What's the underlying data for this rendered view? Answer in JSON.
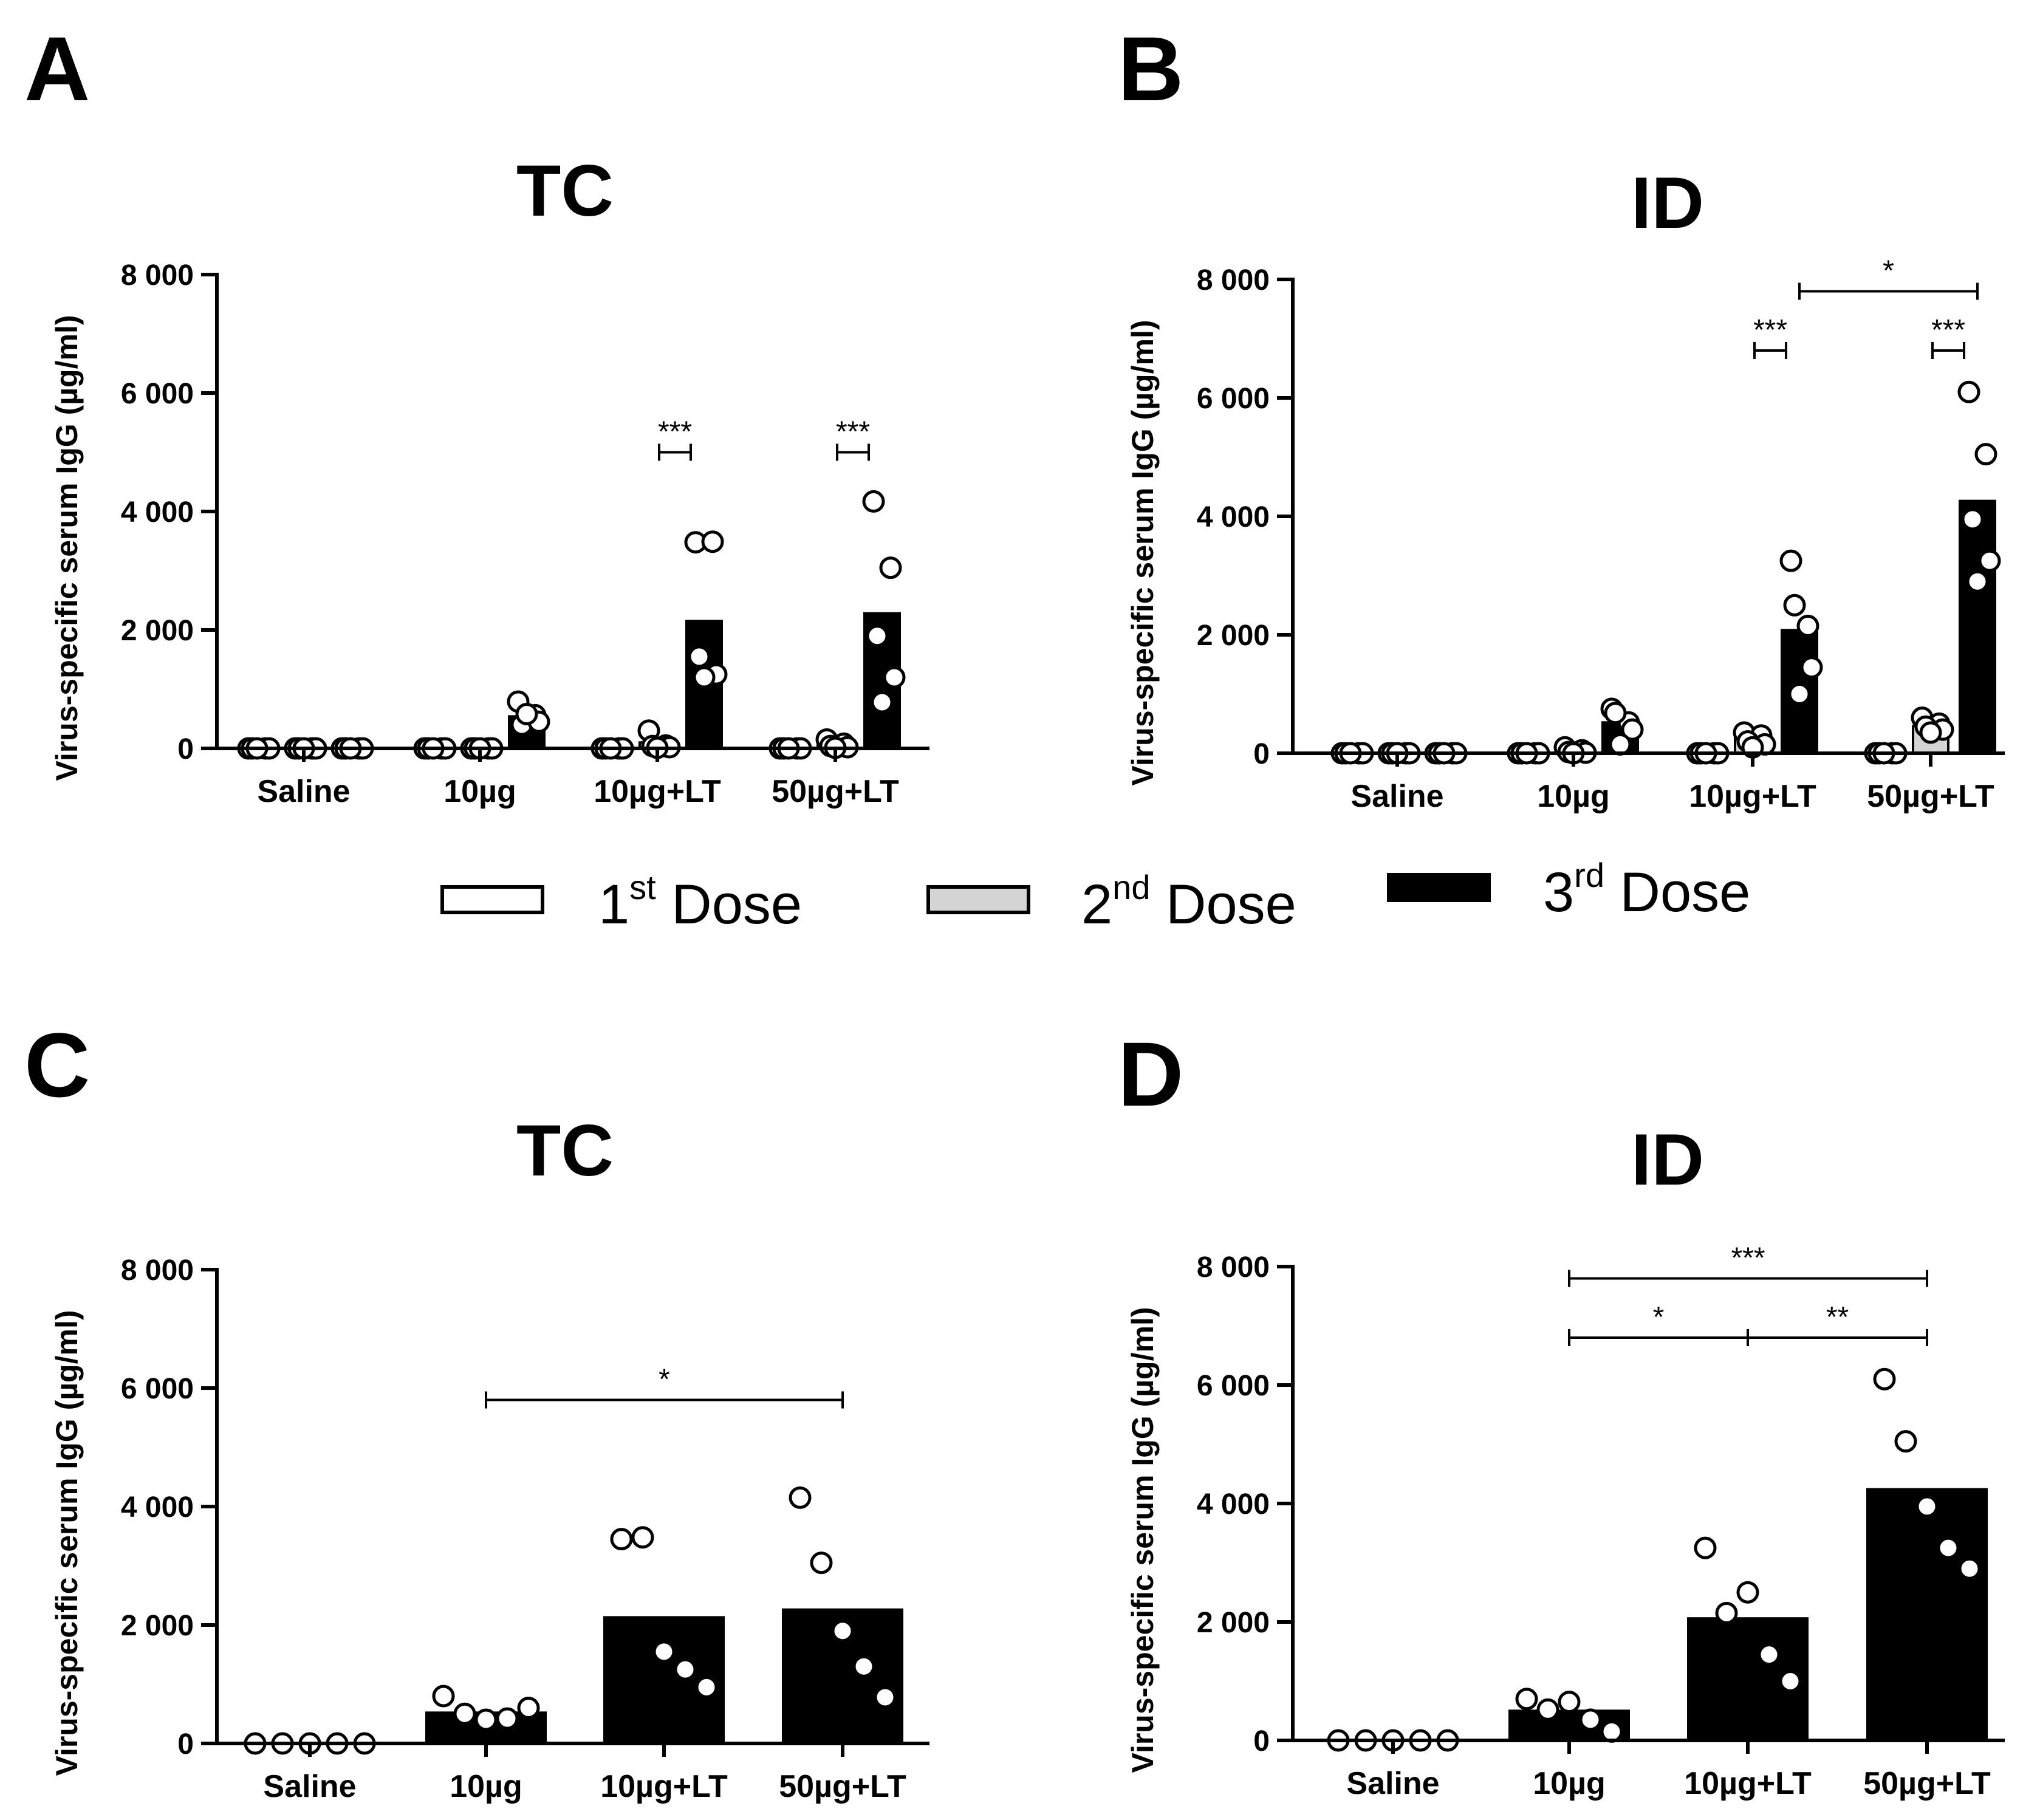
{
  "legend": [
    {
      "pre": "1",
      "sup": "st",
      "post": " Dose",
      "color": "#ffffff"
    },
    {
      "pre": "2",
      "sup": "nd",
      "post": " Dose",
      "color": "#d4d4d4"
    },
    {
      "pre": "3",
      "sup": "rd",
      "post": " Dose",
      "color": "#000000"
    }
  ],
  "chart_data": [
    {
      "panel": "A",
      "title": "TC",
      "type": "bar",
      "ylabel": "Virus-specific serum IgG (µg/ml)",
      "ylim": [
        0,
        8000
      ],
      "yticks": [
        0,
        2000,
        4000,
        6000,
        8000
      ],
      "ytick_labels": [
        "0",
        "2 000",
        "4 000",
        "6 000",
        "8 000"
      ],
      "categories": [
        "Saline",
        "10µg",
        "10µg+LT",
        "50µg+LT"
      ],
      "series": [
        {
          "name": "1st Dose",
          "values": [
            0,
            0,
            0,
            0
          ],
          "points": [
            [
              0,
              0,
              0,
              0,
              0
            ],
            [
              0,
              0,
              0,
              0,
              0
            ],
            [
              0,
              0,
              0,
              0,
              0
            ],
            [
              0,
              0,
              0,
              0,
              0
            ]
          ]
        },
        {
          "name": "2nd Dose",
          "values": [
            0,
            0,
            100,
            60
          ],
          "points": [
            [
              0,
              0,
              0,
              0,
              0
            ],
            [
              0,
              0,
              0,
              0,
              0
            ],
            [
              300,
              50,
              40,
              20,
              10
            ],
            [
              150,
              80,
              40,
              20,
              10
            ]
          ]
        },
        {
          "name": "3rd Dose",
          "values": [
            0,
            540,
            2150,
            2280
          ],
          "points": [
            [
              0,
              0,
              0,
              0,
              0
            ],
            [
              790,
              560,
              400,
              450,
              580
            ],
            [
              3480,
              3490,
              1550,
              1250,
              1200
            ],
            [
              4170,
              3050,
              1900,
              1200,
              780
            ]
          ]
        }
      ],
      "annotations": [
        {
          "cat_from": 2,
          "cat_to": 2,
          "series_from": 1,
          "series_to": 2,
          "label": "***",
          "y": 5000
        },
        {
          "cat_from": 3,
          "cat_to": 3,
          "series_from": 1,
          "series_to": 2,
          "label": "***",
          "y": 5000
        }
      ]
    },
    {
      "panel": "B",
      "title": "ID",
      "type": "bar",
      "ylabel": "Virus-specific serum IgG (µg/ml)",
      "ylim": [
        0,
        8000
      ],
      "yticks": [
        0,
        2000,
        4000,
        6000,
        8000
      ],
      "ytick_labels": [
        "0",
        "2 000",
        "4 000",
        "6 000",
        "8 000"
      ],
      "categories": [
        "Saline",
        "10µg",
        "10µg+LT",
        "50µg+LT"
      ],
      "series": [
        {
          "name": "1st Dose",
          "values": [
            0,
            0,
            0,
            0
          ],
          "points": [
            [
              0,
              0,
              0,
              0,
              0
            ],
            [
              0,
              0,
              0,
              0,
              0
            ],
            [
              0,
              0,
              0,
              0,
              0
            ],
            [
              0,
              0,
              0,
              0,
              0
            ]
          ]
        },
        {
          "name": "2nd Dose",
          "values": [
            0,
            50,
            250,
            460
          ],
          "points": [
            [
              0,
              0,
              0,
              0,
              0
            ],
            [
              100,
              50,
              20,
              10,
              0
            ],
            [
              350,
              300,
              200,
              150,
              100
            ],
            [
              600,
              500,
              450,
              400,
              350
            ]
          ]
        },
        {
          "name": "3rd Dose",
          "values": [
            0,
            520,
            2080,
            4260
          ],
          "points": [
            [
              0,
              0,
              0,
              0,
              0
            ],
            [
              750,
              520,
              680,
              400,
              150
            ],
            [
              3250,
              2150,
              2500,
              1450,
              1000
            ],
            [
              6100,
              5050,
              3950,
              3250,
              2900
            ]
          ]
        }
      ],
      "annotations": [
        {
          "cat_from": 2,
          "cat_to": 2,
          "series_from": 1,
          "series_to": 2,
          "label": "***",
          "y": 6800
        },
        {
          "cat_from": 3,
          "cat_to": 3,
          "series_from": 1,
          "series_to": 2,
          "label": "***",
          "y": 6800
        },
        {
          "cat_from": 2,
          "cat_to": 3,
          "series_from": 2,
          "series_to": 2,
          "label": "*",
          "y": 7800
        }
      ]
    },
    {
      "panel": "C",
      "title": "TC",
      "type": "bar",
      "ylabel": "Virus-specific serum IgG (µg/ml)",
      "ylim": [
        0,
        8000
      ],
      "yticks": [
        0,
        2000,
        4000,
        6000,
        8000
      ],
      "ytick_labels": [
        "0",
        "2 000",
        "4 000",
        "6 000",
        "8 000"
      ],
      "categories": [
        "Saline",
        "10µg",
        "10µg+LT",
        "50µg+LT"
      ],
      "values": [
        0,
        540,
        2150,
        2280
      ],
      "points": [
        [
          0,
          0,
          0,
          0,
          0
        ],
        [
          800,
          500,
          400,
          420,
          600
        ],
        [
          3450,
          3480,
          1550,
          1250,
          950
        ],
        [
          4150,
          3050,
          1900,
          1300,
          780
        ]
      ],
      "annotations": [
        {
          "cat_from": 1,
          "cat_to": 3,
          "label": "*",
          "y": 5800
        }
      ]
    },
    {
      "panel": "D",
      "title": "ID",
      "type": "bar",
      "ylabel": "Virus-specific serum IgG (µg/ml)",
      "ylim": [
        0,
        8000
      ],
      "yticks": [
        0,
        2000,
        4000,
        6000,
        8000
      ],
      "ytick_labels": [
        "0",
        "2 000",
        "4 000",
        "6 000",
        "8 000"
      ],
      "categories": [
        "Saline",
        "10µg",
        "10µg+LT",
        "50µg+LT"
      ],
      "values": [
        0,
        520,
        2080,
        4260
      ],
      "points": [
        [
          0,
          0,
          0,
          0,
          0
        ],
        [
          700,
          520,
          650,
          350,
          150
        ],
        [
          3250,
          2150,
          2500,
          1450,
          1000
        ],
        [
          6100,
          5050,
          3950,
          3250,
          2900
        ]
      ],
      "annotations": [
        {
          "cat_from": 1,
          "cat_to": 3,
          "label": "***",
          "y": 7800
        },
        {
          "cat_from": 1,
          "cat_to": 2,
          "label": "*",
          "y": 6800
        },
        {
          "cat_from": 2,
          "cat_to": 3,
          "label": "**",
          "y": 6800
        }
      ]
    }
  ]
}
